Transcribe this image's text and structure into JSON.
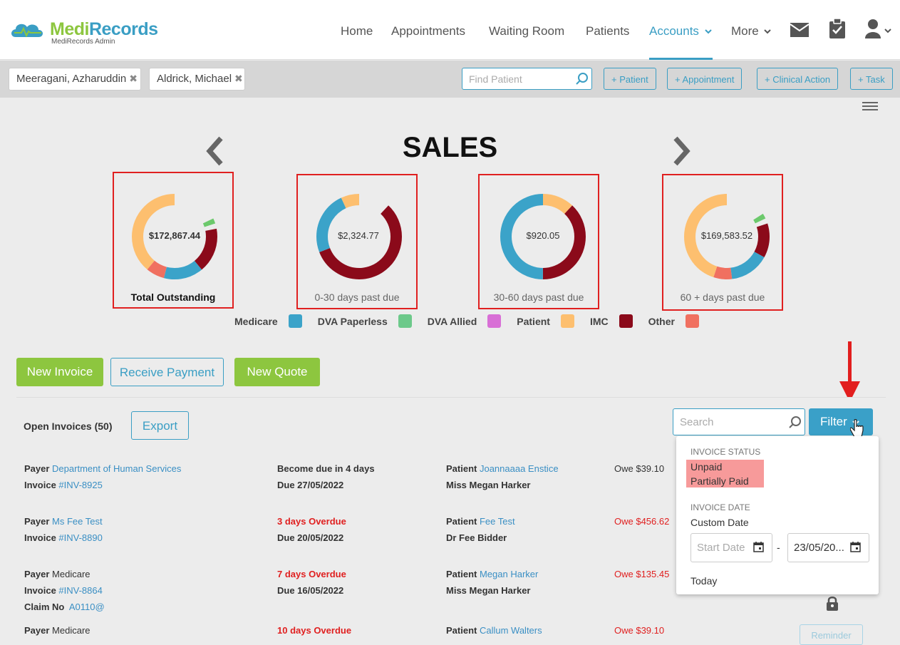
{
  "brand": {
    "name": "MediRecords",
    "sub": "MediRecords Admin"
  },
  "nav": {
    "home": "Home",
    "appointments": "Appointments",
    "waiting": "Waiting Room",
    "patients": "Patients",
    "accounts": "Accounts",
    "more": "More"
  },
  "patient_tabs": [
    {
      "name": "Meeragani, Azharuddin"
    },
    {
      "name": "Aldrick, Michael"
    }
  ],
  "search": {
    "placeholder": "Find Patient"
  },
  "actions": {
    "patient": "+ Patient",
    "appointment": "+ Appointment",
    "clinical": "+ Clinical Action",
    "task": "+ Task"
  },
  "sales_title": "SALES",
  "donuts": [
    {
      "amount": "$172,867.44",
      "caption": "Total Outstanding",
      "segments": [
        {
          "color": "#8b0a1a",
          "frac": 0.17
        },
        {
          "color": "#3ba3c9",
          "frac": 0.15
        },
        {
          "color": "#f07060",
          "frac": 0.07
        },
        {
          "color": "#fdbf6f",
          "frac": 0.59
        },
        {
          "color": "#6cc96c",
          "frac": 0.02
        }
      ],
      "start": 0.22
    },
    {
      "amount": "$2,324.77",
      "caption": "0-30 days past due",
      "segments": [
        {
          "color": "#8b0a1a",
          "frac": 0.57
        },
        {
          "color": "#3ba3c9",
          "frac": 0.24
        },
        {
          "color": "#fdbf6f",
          "frac": 0.19
        }
      ],
      "start": 0.12
    },
    {
      "amount": "$920.05",
      "caption": "30-60 days past due",
      "segments": [
        {
          "color": "#fdbf6f",
          "frac": 0.12
        },
        {
          "color": "#8b0a1a",
          "frac": 0.38
        },
        {
          "color": "#3ba3c9",
          "frac": 0.5
        }
      ],
      "start": 0
    },
    {
      "amount": "$169,583.52",
      "caption": "60 + days past due",
      "segments": [
        {
          "color": "#8b0a1a",
          "frac": 0.13
        },
        {
          "color": "#3ba3c9",
          "frac": 0.15
        },
        {
          "color": "#f07060",
          "frac": 0.07
        },
        {
          "color": "#fdbf6f",
          "frac": 0.63
        },
        {
          "color": "#6cc96c",
          "frac": 0.02
        }
      ],
      "start": 0.2
    }
  ],
  "legend": [
    {
      "label": "Medicare",
      "color": "#3ba3c9"
    },
    {
      "label": "DVA Paperless",
      "color": "#6cc98a"
    },
    {
      "label": "DVA Allied",
      "color": "#d86fd6"
    },
    {
      "label": "Patient",
      "color": "#fdbf6f"
    },
    {
      "label": "IMC",
      "color": "#8b0a1a"
    },
    {
      "label": "Other",
      "color": "#f07060"
    }
  ],
  "buttons": {
    "new_invoice": "New Invoice",
    "receive_payment": "Receive Payment",
    "new_quote": "New Quote",
    "export": "Export",
    "filter": "Filter",
    "reminder": "Reminder"
  },
  "open_invoices": "Open Invoices (50)",
  "invoice_search": {
    "placeholder": "Search"
  },
  "invoices": [
    {
      "payer_label": "Payer",
      "payer": "Department of Human Services",
      "invoice_label": "Invoice",
      "invoice": "#INV-8925",
      "status": "Become due in 4 days",
      "due": "Due 27/05/2022",
      "patient_label": "Patient",
      "patient": "Joannaaaa Enstice",
      "doctor": "Miss Megan Harker",
      "owe": "Owe $39.10"
    },
    {
      "payer_label": "Payer",
      "payer": "Ms Fee Test",
      "invoice_label": "Invoice",
      "invoice": "#INV-8890",
      "status": "3 days Overdue",
      "due": "Due 20/05/2022",
      "patient_label": "Patient",
      "patient": "Fee Test",
      "doctor": "Dr Fee Bidder",
      "owe": "Owe $456.62"
    },
    {
      "payer_label": "Payer",
      "payer": "Medicare",
      "invoice_label": "Invoice",
      "invoice": "#INV-8864",
      "claim_label": "Claim No",
      "claim": "A0110@",
      "status": "7 days Overdue",
      "due": "Due 16/05/2022",
      "patient_label": "Patient",
      "patient": "Megan Harker",
      "doctor": "Miss Megan Harker",
      "owe": "Owe $135.45"
    },
    {
      "payer_label": "Payer",
      "payer": "Medicare",
      "status": "10 days Overdue",
      "patient_label": "Patient",
      "patient": "Callum Walters",
      "owe": "Owe $39.10"
    }
  ],
  "filter_dropdown": {
    "status_header": "INVOICE STATUS",
    "unpaid": "Unpaid",
    "partially_paid": "Partially Paid",
    "date_header": "INVOICE DATE",
    "custom_date": "Custom Date",
    "start_placeholder": "Start Date",
    "end_value": "23/05/20...",
    "dash": "-",
    "today": "Today"
  }
}
